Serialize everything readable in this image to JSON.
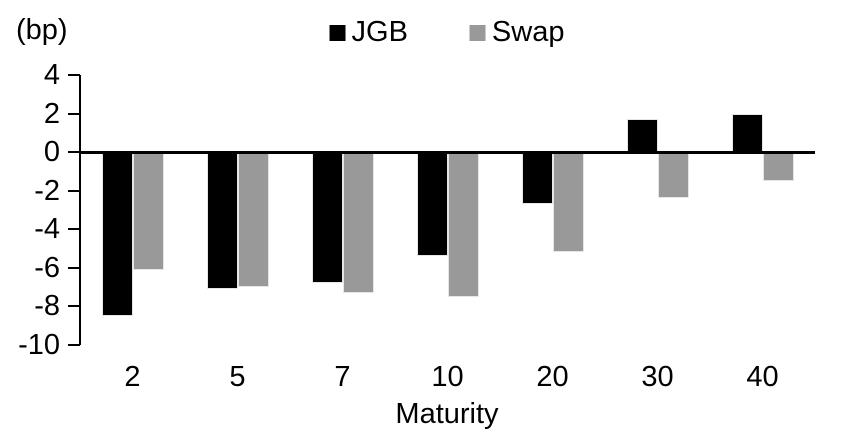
{
  "chart_data": {
    "type": "bar",
    "title": "",
    "unit_label": "(bp)",
    "xlabel": "Maturity",
    "categories": [
      "2",
      "5",
      "7",
      "10",
      "20",
      "30",
      "40"
    ],
    "series": [
      {
        "name": "JGB",
        "color": "#000000",
        "values": [
          -8.5,
          -7.1,
          -6.8,
          -5.4,
          -2.7,
          1.7,
          2.0
        ]
      },
      {
        "name": "Swap",
        "color": "#999999",
        "values": [
          -6.1,
          -7.0,
          -7.3,
          -7.5,
          -5.2,
          -2.4,
          -1.5
        ]
      }
    ],
    "ylim": [
      -10,
      4
    ],
    "yticks": [
      4,
      2,
      0,
      -2,
      -4,
      -6,
      -8,
      -10
    ],
    "grid": false,
    "legend_position": "top-center",
    "axis_color": "#000000",
    "background": "#ffffff"
  }
}
